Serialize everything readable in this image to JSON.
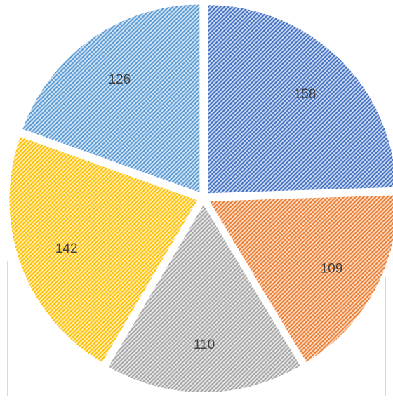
{
  "chart_data": {
    "type": "pie",
    "title": "",
    "slices": [
      {
        "value": 158,
        "label": "158",
        "color": "#4472C4"
      },
      {
        "value": 109,
        "label": "109",
        "color": "#ED7D31"
      },
      {
        "value": 110,
        "label": "110",
        "color": "#A5A5A5"
      },
      {
        "value": 142,
        "label": "142",
        "color": "#FFC000"
      },
      {
        "value": 126,
        "label": "126",
        "color": "#5B9BD5"
      }
    ],
    "start_angle_deg": 0,
    "direction": "clockwise",
    "fill_pattern": "diagonal-stripes",
    "legend": "none",
    "exploded": true
  }
}
